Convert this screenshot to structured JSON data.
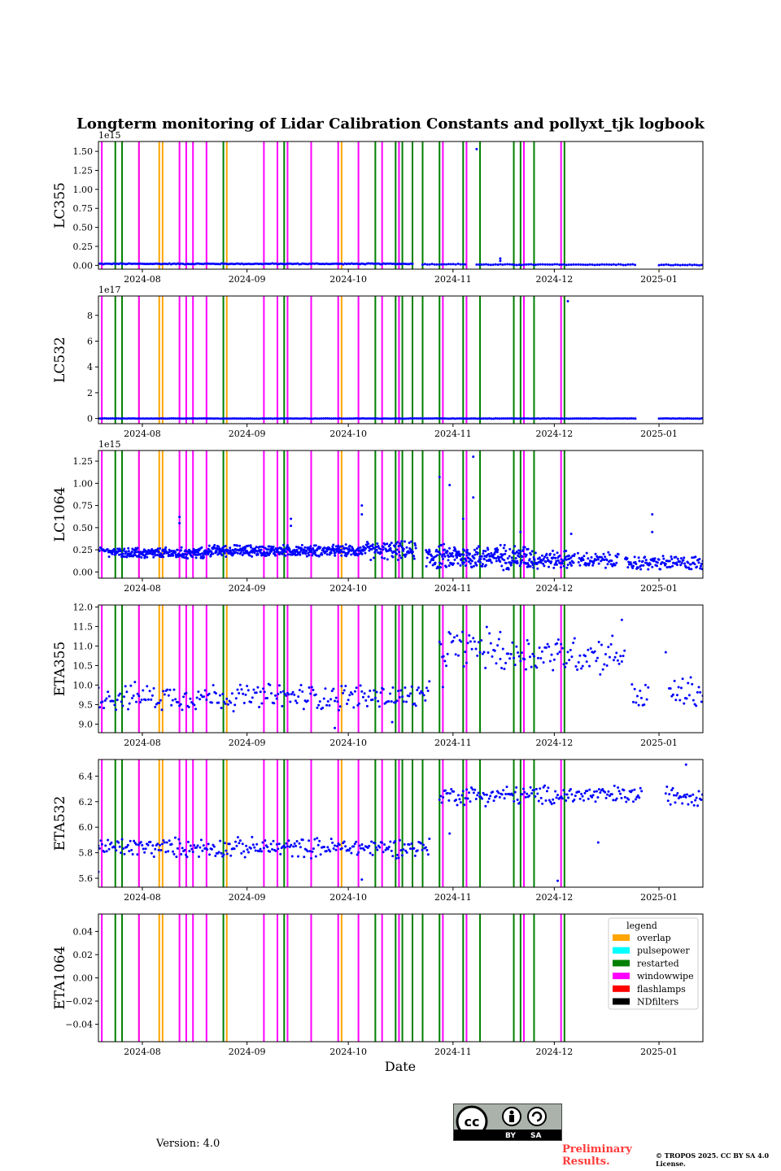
{
  "title": "Longterm monitoring of Lidar Calibration Constants and pollyxt_tjk logbook",
  "xlabel": "Date",
  "version_text": "Version: 4.0",
  "preliminary_text": "Preliminary Results.",
  "license_text": "© TROPOS 2025. CC BY SA 4.0 License.",
  "cc_badge": {
    "by": "BY",
    "sa": "SA"
  },
  "colors": {
    "data": "#0000ff",
    "overlap": "#ffa500",
    "pulsepower": "#00ffff",
    "restarted": "#008000",
    "windowwipe": "#ff00ff",
    "flashlamps": "#ff0000",
    "NDfilters": "#000000"
  },
  "legend": {
    "title": "legend",
    "items": [
      {
        "label": "overlap",
        "color": "#ffa500"
      },
      {
        "label": "pulsepower",
        "color": "#00ffff"
      },
      {
        "label": "restarted",
        "color": "#008000"
      },
      {
        "label": "windowwipe",
        "color": "#ff00ff"
      },
      {
        "label": "flashlamps",
        "color": "#ff0000"
      },
      {
        "label": "NDfilters",
        "color": "#000000"
      }
    ]
  },
  "chart_data": {
    "type": "scatter",
    "x_range": [
      "2024-07-19",
      "2025-01-14"
    ],
    "x_ticks": [
      "2024-08",
      "2024-09",
      "2024-10",
      "2024-11",
      "2024-12",
      "2025-01"
    ],
    "x_tick_dates": [
      "2024-08-01",
      "2024-09-01",
      "2024-10-01",
      "2024-11-01",
      "2024-12-01",
      "2025-01-01"
    ],
    "events": {
      "windowwipe": [
        "2024-07-20",
        "2024-07-31",
        "2024-08-12",
        "2024-08-14",
        "2024-08-16",
        "2024-08-20",
        "2024-09-06",
        "2024-09-10",
        "2024-09-13",
        "2024-09-20",
        "2024-09-28",
        "2024-10-04",
        "2024-10-11",
        "2024-10-16",
        "2024-10-29",
        "2024-11-05",
        "2024-11-22",
        "2024-12-03"
      ],
      "restarted": [
        "2024-07-24",
        "2024-07-26",
        "2024-08-25",
        "2024-09-12",
        "2024-10-09",
        "2024-10-15",
        "2024-10-17",
        "2024-10-20",
        "2024-10-23",
        "2024-10-28",
        "2024-11-04",
        "2024-11-09",
        "2024-11-19",
        "2024-11-21",
        "2024-11-25",
        "2024-12-04"
      ],
      "overlap": [
        "2024-07-31",
        "2024-08-06",
        "2024-08-07",
        "2024-08-26",
        "2024-09-29"
      ]
    },
    "panels": [
      {
        "ylabel": "LC355",
        "offset": "1e15",
        "ylim": [
          -0.05,
          1.63
        ],
        "ticks": [
          0.0,
          0.25,
          0.5,
          0.75,
          1.0,
          1.25,
          1.5
        ],
        "tick_labels": [
          "0.00",
          "0.25",
          "0.50",
          "0.75",
          "1.00",
          "1.25",
          "1.50"
        ],
        "series": [
          {
            "x0": "2024-07-19",
            "x1": "2024-10-20",
            "y": 0.02,
            "spread": 0.01,
            "step": 0.5
          },
          {
            "x0": "2024-10-23",
            "x1": "2024-11-05",
            "y": 0.015,
            "spread": 0.01,
            "step": 0.7
          },
          {
            "x0": "2024-11-08",
            "x1": "2024-12-25",
            "y": 0.01,
            "spread": 0.01,
            "step": 0.7
          },
          {
            "x0": "2025-01-01",
            "x1": "2025-01-14",
            "y": 0.005,
            "spread": 0.01,
            "step": 0.7
          }
        ],
        "points": [
          [
            "2024-11-08",
            1.53
          ],
          [
            "2024-11-15",
            0.09
          ],
          [
            "2024-11-15",
            0.06
          ]
        ]
      },
      {
        "ylabel": "LC532",
        "offset": "1e17",
        "ylim": [
          -0.4,
          9.5
        ],
        "ticks": [
          0,
          2,
          4,
          6,
          8
        ],
        "tick_labels": [
          "0",
          "2",
          "4",
          "6",
          "8"
        ],
        "series": [
          {
            "x0": "2024-07-19",
            "x1": "2024-12-25",
            "y": 0.0,
            "spread": 0.02,
            "step": 0.6
          },
          {
            "x0": "2025-01-01",
            "x1": "2025-01-14",
            "y": 0.0,
            "spread": 0.02,
            "step": 0.6
          }
        ],
        "points": [
          [
            "2024-12-05",
            9.1
          ]
        ]
      },
      {
        "ylabel": "LC1064",
        "offset": "1e15",
        "ylim": [
          -0.07,
          1.37
        ],
        "ticks": [
          0.0,
          0.25,
          0.5,
          0.75,
          1.0,
          1.25
        ],
        "tick_labels": [
          "0.00",
          "0.25",
          "0.50",
          "0.75",
          "1.00",
          "1.25"
        ],
        "series": [
          {
            "x0": "2024-07-19",
            "x1": "2024-07-22",
            "y": 0.25,
            "spread": 0.05,
            "step": 0.3
          },
          {
            "x0": "2024-07-22",
            "x1": "2024-07-28",
            "y": 0.22,
            "spread": 0.08,
            "step": 0.15
          },
          {
            "x0": "2024-07-28",
            "x1": "2024-08-20",
            "y": 0.21,
            "spread": 0.1,
            "step": 0.12
          },
          {
            "x0": "2024-08-20",
            "x1": "2024-10-06",
            "y": 0.24,
            "spread": 0.1,
            "step": 0.12
          },
          {
            "x0": "2024-10-06",
            "x1": "2024-10-21",
            "y": 0.24,
            "spread": 0.16,
            "step": 0.15
          },
          {
            "x0": "2024-10-24",
            "x1": "2024-11-25",
            "y": 0.17,
            "spread": 0.22,
            "step": 0.12
          },
          {
            "x0": "2024-11-25",
            "x1": "2024-12-07",
            "y": 0.14,
            "spread": 0.16,
            "step": 0.15
          },
          {
            "x0": "2024-12-08",
            "x1": "2024-12-20",
            "y": 0.13,
            "spread": 0.14,
            "step": 0.2
          },
          {
            "x0": "2024-12-22",
            "x1": "2025-01-14",
            "y": 0.1,
            "spread": 0.13,
            "step": 0.2
          }
        ],
        "points": [
          [
            "2024-08-12",
            0.62
          ],
          [
            "2024-08-12",
            0.55
          ],
          [
            "2024-09-14",
            0.6
          ],
          [
            "2024-09-14",
            0.52
          ],
          [
            "2024-10-05",
            0.75
          ],
          [
            "2024-10-05",
            0.65
          ],
          [
            "2024-10-28",
            1.07
          ],
          [
            "2024-10-31",
            0.98
          ],
          [
            "2024-11-07",
            1.3
          ],
          [
            "2024-11-07",
            0.84
          ],
          [
            "2024-11-04",
            0.6
          ],
          [
            "2024-11-21",
            0.45
          ],
          [
            "2024-12-06",
            0.43
          ],
          [
            "2024-12-30",
            0.65
          ],
          [
            "2024-12-30",
            0.45
          ]
        ]
      },
      {
        "ylabel": "ETA355",
        "offset": "",
        "ylim": [
          8.78,
          12.05
        ],
        "ticks": [
          9.0,
          9.5,
          10.0,
          10.5,
          11.0,
          11.5,
          12.0
        ],
        "tick_labels": [
          "9.0",
          "9.5",
          "10.0",
          "10.5",
          "11.0",
          "11.5",
          "12.0"
        ],
        "series": [
          {
            "x0": "2024-07-19",
            "x1": "2024-10-25",
            "y": 9.7,
            "spread": 0.55,
            "step": 0.4
          },
          {
            "x0": "2024-10-28",
            "x1": "2024-11-15",
            "y": 10.95,
            "spread": 0.8,
            "step": 0.4
          },
          {
            "x0": "2024-11-15",
            "x1": "2024-12-22",
            "y": 10.8,
            "spread": 0.8,
            "step": 0.4
          },
          {
            "x0": "2024-12-24",
            "x1": "2024-12-29",
            "y": 9.7,
            "spread": 0.6,
            "step": 0.4
          },
          {
            "x0": "2025-01-04",
            "x1": "2025-01-14",
            "y": 9.8,
            "spread": 0.7,
            "step": 0.4
          }
        ],
        "points": [
          [
            "2024-10-14",
            9.05
          ],
          [
            "2024-09-27",
            8.9
          ],
          [
            "2024-10-29",
            9.95
          ],
          [
            "2024-12-02",
            10.8
          ],
          [
            "2024-12-21",
            11.67
          ],
          [
            "2025-01-03",
            10.84
          ]
        ]
      },
      {
        "ylabel": "ETA532",
        "offset": "",
        "ylim": [
          5.53,
          6.53
        ],
        "ticks": [
          5.6,
          5.8,
          6.0,
          6.2,
          6.4
        ],
        "tick_labels": [
          "5.6",
          "5.8",
          "6.0",
          "6.2",
          "6.4"
        ],
        "series": [
          {
            "x0": "2024-07-19",
            "x1": "2024-10-25",
            "y": 5.84,
            "spread": 0.12,
            "step": 0.35
          },
          {
            "x0": "2024-10-28",
            "x1": "2024-12-27",
            "y": 6.25,
            "spread": 0.12,
            "step": 0.35
          },
          {
            "x0": "2025-01-03",
            "x1": "2025-01-14",
            "y": 6.25,
            "spread": 0.12,
            "step": 0.35
          }
        ],
        "points": [
          [
            "2024-07-19",
            5.65
          ],
          [
            "2024-10-05",
            5.59
          ],
          [
            "2024-10-31",
            5.95
          ],
          [
            "2024-12-02",
            5.58
          ],
          [
            "2024-12-14",
            5.88
          ],
          [
            "2025-01-09",
            6.49
          ]
        ]
      },
      {
        "ylabel": "ETA1064",
        "offset": "",
        "ylim": [
          -0.055,
          0.055
        ],
        "ticks": [
          -0.04,
          -0.02,
          0.0,
          0.02,
          0.04
        ],
        "tick_labels": [
          "−0.04",
          "−0.02",
          "0.00",
          "0.02",
          "0.04"
        ],
        "series": [],
        "points": []
      }
    ]
  }
}
